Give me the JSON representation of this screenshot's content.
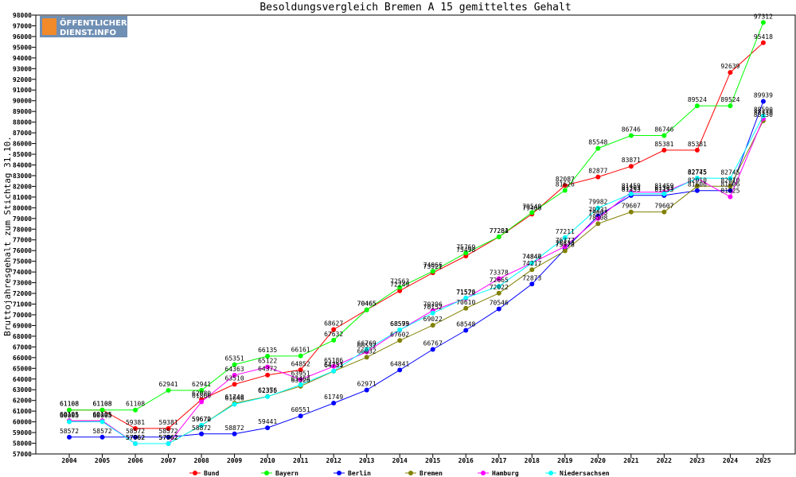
{
  "logo": {
    "line1": "ÖFFENTLICHER",
    "line2": "DIENST.INFO"
  },
  "chart_data": {
    "type": "line",
    "title": "Besoldungsvergleich Bremen A 15 gemitteltes Gehalt",
    "ylabel": "Bruttojahresgehalt zum Stichtag 31.10.",
    "xlabel": "",
    "categories": [
      "2004",
      "2005",
      "2006",
      "2007",
      "2008",
      "2009",
      "2010",
      "2011",
      "2012",
      "2013",
      "2014",
      "2015",
      "2016",
      "2017",
      "2018",
      "2019",
      "2020",
      "2021",
      "2022",
      "2023",
      "2024",
      "2025"
    ],
    "ylim": [
      57000,
      98000
    ],
    "ytick_step": 1000,
    "grid": false,
    "legend_position": "bottom",
    "series": [
      {
        "name": "Bund",
        "color": "#ff0000",
        "values": [
          61108,
          61108,
          59381,
          59381,
          62080,
          63510,
          64372,
          64852,
          68627,
          70465,
          72249,
          73921,
          75498,
          77281,
          79400,
          82087,
          82877,
          83871,
          85381,
          85381,
          92639,
          95418
        ]
      },
      {
        "name": "Bayern",
        "color": "#00ff00",
        "values": [
          61108,
          61108,
          61108,
          62941,
          62941,
          65351,
          66135,
          66161,
          67632,
          70465,
          72563,
          74066,
          75769,
          77284,
          79549,
          81626,
          85548,
          86746,
          86746,
          89524,
          89524,
          97312
        ]
      },
      {
        "name": "Berlin",
        "color": "#0000ff",
        "values": [
          58572,
          58572,
          58572,
          58572,
          58872,
          58872,
          59441,
          60551,
          61749,
          62971,
          64841,
          66767,
          68548,
          70546,
          72873,
          76133,
          79231,
          81153,
          81153,
          81606,
          81606,
          89939
        ]
      },
      {
        "name": "Bremen",
        "color": "#808000",
        "values": [
          60105,
          60105,
          57962,
          57962,
          59670,
          61740,
          62376,
          63326,
          64731,
          66032,
          67602,
          69022,
          70610,
          72022,
          74217,
          75978,
          78508,
          79607,
          79607,
          82010,
          82010,
          88130
        ]
      },
      {
        "name": "Hamburg",
        "color": "#ff00ff",
        "values": [
          60105,
          60105,
          57962,
          57962,
          61866,
          64363,
          65122,
          63951,
          65186,
          66532,
          68573,
          70396,
          71522,
          73378,
          74847,
          76377,
          79003,
          81459,
          81459,
          82745,
          81025,
          88330
        ]
      },
      {
        "name": "Niedersachsen",
        "color": "#00ffff",
        "values": [
          60005,
          60005,
          57962,
          57962,
          59672,
          61646,
          62355,
          63464,
          64753,
          66769,
          68599,
          70152,
          71576,
          72665,
          74846,
          77211,
          79982,
          81303,
          81303,
          82775,
          82745,
          88590
        ]
      }
    ]
  }
}
